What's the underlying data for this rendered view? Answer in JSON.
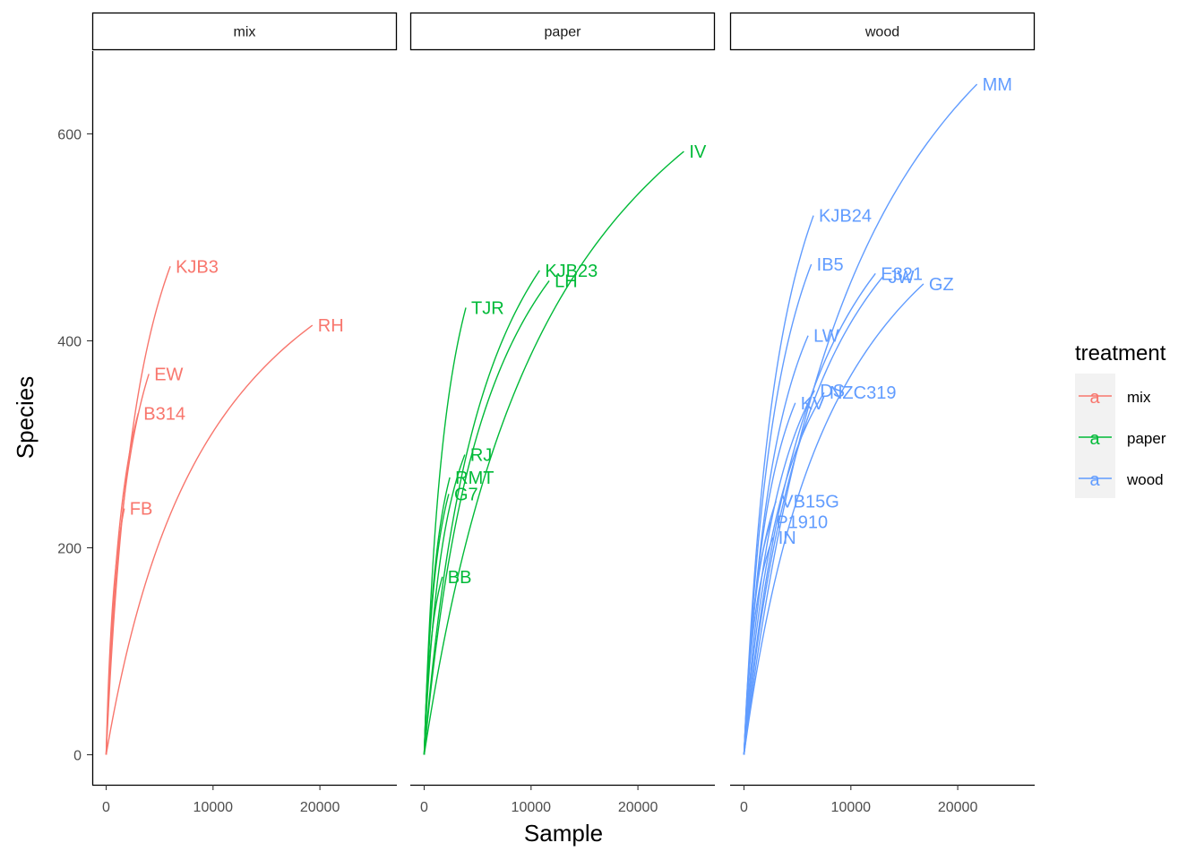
{
  "chart_data": {
    "type": "line",
    "facet_by": "treatment",
    "facets": [
      "mix",
      "paper",
      "wood"
    ],
    "xlabel": "Sample",
    "ylabel": "Species",
    "xlim": [
      -1300,
      27200
    ],
    "ylim": [
      -29,
      680
    ],
    "x_ticks": [
      0,
      10000,
      20000
    ],
    "y_ticks": [
      0,
      200,
      400,
      600
    ],
    "legend": {
      "title": "treatment",
      "position": "right",
      "key_glyph": "a",
      "entries": [
        {
          "label": "mix",
          "color": "#F8766D"
        },
        {
          "label": "paper",
          "color": "#00BA38"
        },
        {
          "label": "wood",
          "color": "#619CFF"
        }
      ]
    },
    "colors": {
      "mix": "#F8766D",
      "paper": "#00BA38",
      "wood": "#619CFF"
    },
    "series": [
      {
        "name": "KJB3",
        "facet": "mix",
        "n": 6000,
        "s": 472
      },
      {
        "name": "RH",
        "facet": "mix",
        "n": 19300,
        "s": 415
      },
      {
        "name": "EW",
        "facet": "mix",
        "n": 4000,
        "s": 368
      },
      {
        "name": "B314",
        "facet": "mix",
        "n": 3000,
        "s": 330
      },
      {
        "name": "FB",
        "facet": "mix",
        "n": 1700,
        "s": 238
      },
      {
        "name": "IV",
        "facet": "paper",
        "n": 24300,
        "s": 583
      },
      {
        "name": "KJB23",
        "facet": "paper",
        "n": 10800,
        "s": 468
      },
      {
        "name": "LH",
        "facet": "paper",
        "n": 11700,
        "s": 458
      },
      {
        "name": "TJR",
        "facet": "paper",
        "n": 3900,
        "s": 432
      },
      {
        "name": "RJ",
        "facet": "paper",
        "n": 3800,
        "s": 290
      },
      {
        "name": "RMT",
        "facet": "paper",
        "n": 2400,
        "s": 268
      },
      {
        "name": "G7",
        "facet": "paper",
        "n": 2300,
        "s": 252
      },
      {
        "name": "BB",
        "facet": "paper",
        "n": 1700,
        "s": 172
      },
      {
        "name": "MM",
        "facet": "wood",
        "n": 21800,
        "s": 648
      },
      {
        "name": "KJB24",
        "facet": "wood",
        "n": 6500,
        "s": 521
      },
      {
        "name": "IB5",
        "facet": "wood",
        "n": 6300,
        "s": 474
      },
      {
        "name": "JW",
        "facet": "wood",
        "n": 13000,
        "s": 462
      },
      {
        "name": "E321",
        "facet": "wood",
        "n": 12300,
        "s": 465
      },
      {
        "name": "GZ",
        "facet": "wood",
        "n": 16800,
        "s": 455
      },
      {
        "name": "LW",
        "facet": "wood",
        "n": 6000,
        "s": 405
      },
      {
        "name": "NZC319",
        "facet": "wood",
        "n": 7500,
        "s": 350
      },
      {
        "name": "DS",
        "facet": "wood",
        "n": 6600,
        "s": 352
      },
      {
        "name": "KV",
        "facet": "wood",
        "n": 4800,
        "s": 340
      },
      {
        "name": "VB15G",
        "facet": "wood",
        "n": 3000,
        "s": 245
      },
      {
        "name": "P1910",
        "facet": "wood",
        "n": 2500,
        "s": 225
      },
      {
        "name": "IN",
        "facet": "wood",
        "n": 2700,
        "s": 210
      }
    ]
  }
}
